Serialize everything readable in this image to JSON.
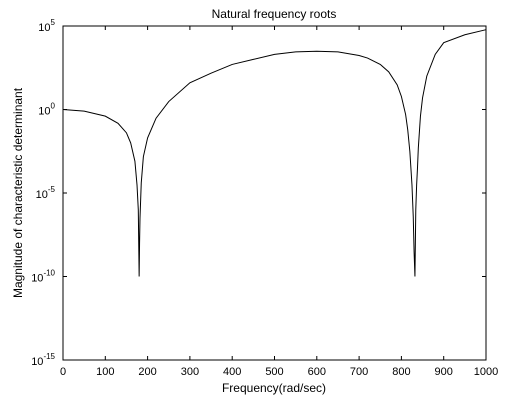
{
  "chart_data": {
    "type": "line",
    "title": "Natural frequency roots",
    "xlabel": "Frequency(rad/sec)",
    "ylabel": "Magnitude of characteristic determinant",
    "x_scale": "linear",
    "y_scale": "log",
    "xlim": [
      0,
      1000
    ],
    "ylim": [
      1e-15,
      100000.0
    ],
    "grid": false,
    "x_ticks": [
      0,
      100,
      200,
      300,
      400,
      500,
      600,
      700,
      800,
      900,
      1000
    ],
    "x_tick_labels": [
      "0",
      "100",
      "200",
      "300",
      "400",
      "500",
      "600",
      "700",
      "800",
      "900",
      "1000"
    ],
    "y_ticks": [
      1e-15,
      1e-10,
      1e-05,
      1,
      100000.0
    ],
    "y_tick_labels": [
      {
        "base": "10",
        "exp": "-15"
      },
      {
        "base": "10",
        "exp": "-10"
      },
      {
        "base": "10",
        "exp": "-5"
      },
      {
        "base": "10",
        "exp": "0"
      },
      {
        "base": "10",
        "exp": "5"
      }
    ],
    "line_color": "#000000",
    "series": [
      {
        "x": [
          0,
          50,
          100,
          130,
          150,
          160,
          170,
          175,
          178,
          179,
          180,
          181,
          182,
          185,
          190,
          200,
          220,
          250,
          300,
          350,
          400,
          450,
          500,
          550,
          600,
          650,
          700,
          720,
          750,
          770,
          790,
          800,
          810,
          815,
          820,
          825,
          828,
          830,
          832,
          833,
          834,
          836,
          838,
          840,
          845,
          850,
          860,
          880,
          900,
          950,
          1000
        ],
        "y": [
          1.0,
          0.8,
          0.4,
          0.15,
          0.04,
          0.01,
          0.0008,
          3e-05,
          1e-06,
          1e-08,
          1e-10,
          1e-08,
          3e-07,
          4e-05,
          0.0015,
          0.02,
          0.3,
          3,
          40,
          150,
          500,
          1000,
          2000,
          2800,
          3100,
          2800,
          1700,
          1200,
          500,
          180,
          30,
          6,
          0.5,
          0.06,
          0.003,
          3e-05,
          4e-07,
          3e-09,
          1e-10,
          1e-08,
          1e-06,
          3e-05,
          0.0003,
          0.005,
          0.4,
          5,
          100,
          2000,
          10000,
          30000,
          60000
        ]
      }
    ]
  }
}
